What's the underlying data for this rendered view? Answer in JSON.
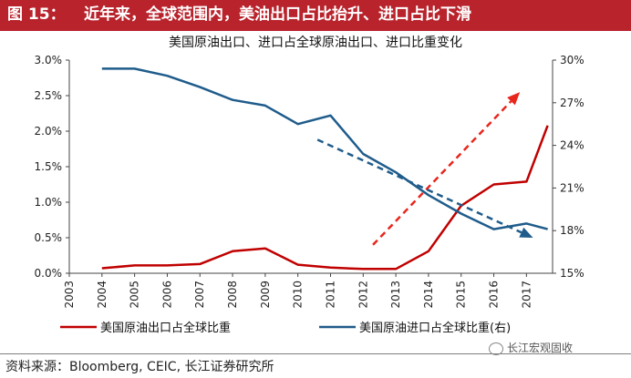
{
  "header": {
    "label": "图 15：",
    "title": "近年来，全球范围内，美油出口占比抬升、进口占比下滑",
    "bg_color": "#b8232c"
  },
  "source": "资料来源：Bloomberg, CEIC, 长江证券研究所",
  "watermark": "长江宏观固收",
  "chart_data": {
    "type": "line",
    "title": "美国原油出口、进口占全球原油出口、进口比重变化",
    "x_ticks": [
      "2003",
      "2004",
      "2005",
      "2006",
      "2007",
      "2008",
      "2009",
      "2010",
      "2011",
      "2012",
      "2013",
      "2014",
      "2015",
      "2016",
      "2017"
    ],
    "left_axis": {
      "range": [
        0,
        3.0
      ],
      "ticks": [
        "0.0%",
        "0.5%",
        "1.0%",
        "1.5%",
        "2.0%",
        "2.5%",
        "3.0%"
      ]
    },
    "right_axis": {
      "range": [
        15,
        30
      ],
      "ticks": [
        "15%",
        "18%",
        "21%",
        "24%",
        "27%",
        "30%"
      ]
    },
    "series": [
      {
        "name": "美国原油出口占全球比重",
        "axis": "left",
        "color": "#c00000",
        "x": [
          2004,
          2005,
          2006,
          2007,
          2008,
          2009,
          2010,
          2011,
          2012,
          2013,
          2014,
          2015,
          2016,
          2017,
          2017.65
        ],
        "y": [
          0.07,
          0.11,
          0.11,
          0.13,
          0.31,
          0.35,
          0.12,
          0.08,
          0.06,
          0.06,
          0.31,
          0.95,
          1.25,
          1.29,
          2.08
        ]
      },
      {
        "name": "美国原油进口占全球比重(右)",
        "axis": "right",
        "color": "#1f5c8b",
        "x": [
          2004,
          2005,
          2006,
          2007,
          2008,
          2009,
          2010,
          2011,
          2012,
          2013,
          2014,
          2015,
          2016,
          2017,
          2017.65
        ],
        "y": [
          29.4,
          29.4,
          28.9,
          28.1,
          27.2,
          26.8,
          25.5,
          26.1,
          23.4,
          22.1,
          20.5,
          19.2,
          18.1,
          18.5,
          18.1
        ]
      }
    ],
    "trend_arrows": [
      {
        "color": "#e8261c",
        "axis": "left",
        "from": [
          2012.3,
          0.4
        ],
        "to": [
          2016.8,
          2.55
        ]
      },
      {
        "color": "#1f5c8b",
        "axis": "right",
        "from": [
          2010.6,
          24.4
        ],
        "to": [
          2017.2,
          17.5
        ]
      }
    ]
  }
}
